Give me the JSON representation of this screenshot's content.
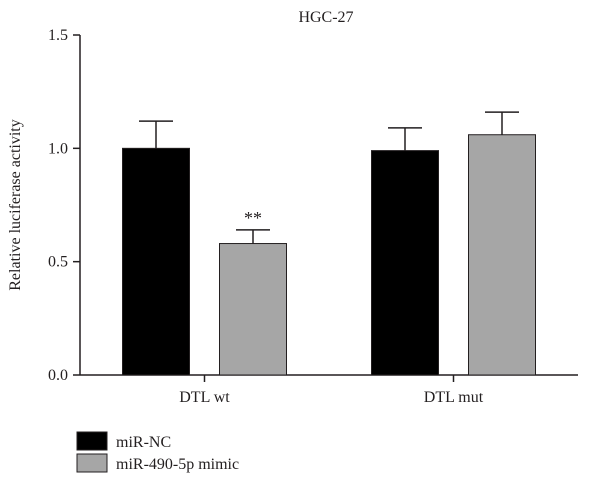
{
  "chart_data": {
    "type": "bar",
    "title": "HGC-27",
    "xlabel": "",
    "ylabel": "Relative luciferase activity",
    "categories": [
      "DTL wt",
      "DTL mut"
    ],
    "series": [
      {
        "name": "miR-NC",
        "color": "#000000",
        "values": [
          1.0,
          0.99
        ],
        "errors": [
          0.12,
          0.1
        ]
      },
      {
        "name": "miR-490-5p mimic",
        "color": "#a6a6a6",
        "values": [
          0.58,
          1.06
        ],
        "errors": [
          0.06,
          0.1
        ]
      }
    ],
    "significance": [
      {
        "category": "DTL wt",
        "series": "miR-490-5p mimic",
        "label": "**"
      }
    ],
    "ylim": [
      0,
      1.5
    ],
    "yticks": [
      0.0,
      0.5,
      1.0,
      1.5
    ],
    "ytick_labels": [
      "0.0",
      "0.5",
      "1.0",
      "1.5"
    ],
    "grid": false,
    "legend_position": "bottom-left"
  }
}
